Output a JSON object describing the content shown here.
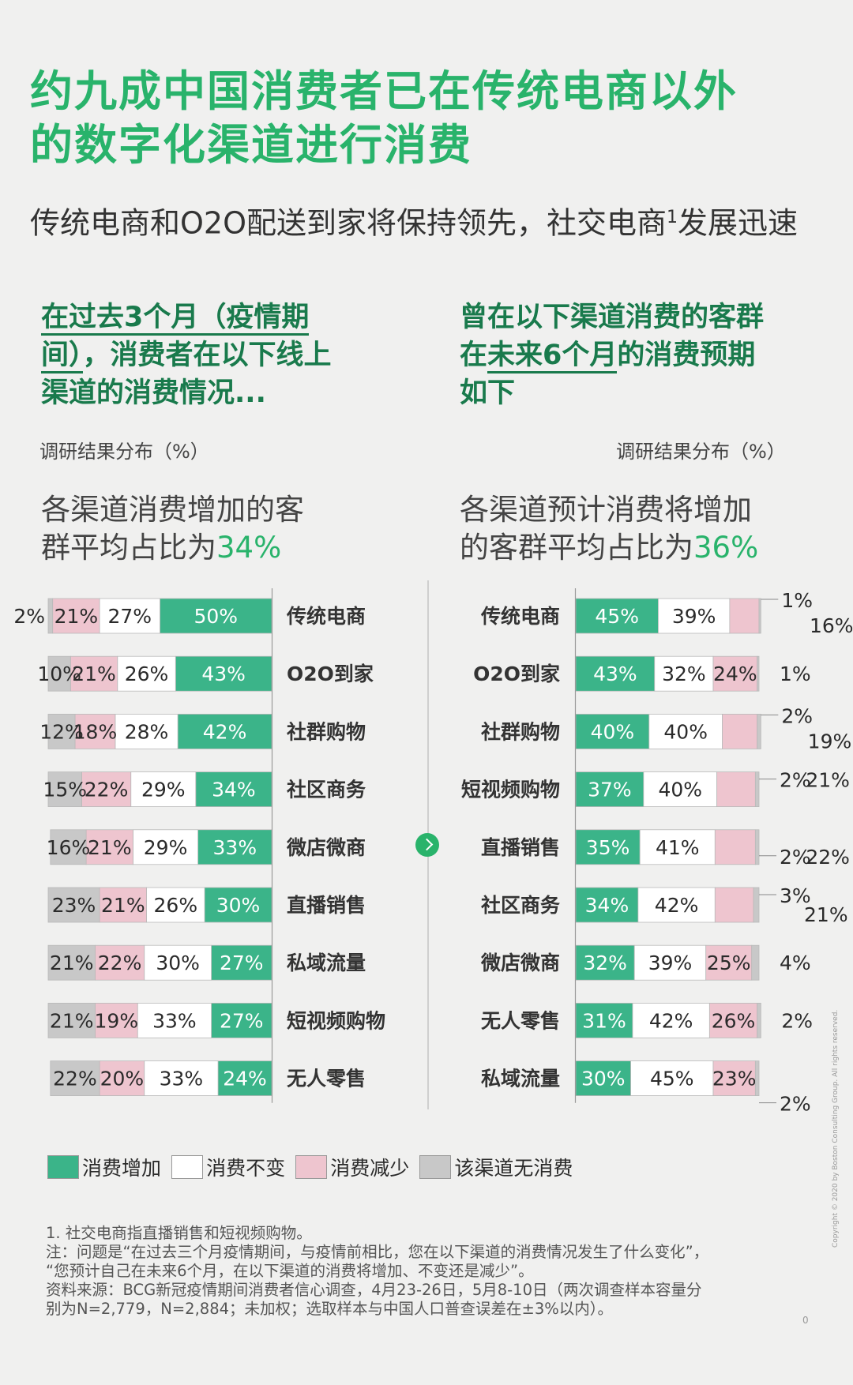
{
  "title_line1": "约九成中国消费者已在传统电商以外",
  "title_line2": "的数字化渠道进行消费",
  "subtitle_a": "传统电商和O2O配送到家将保持领先，社交电商",
  "subtitle_sup": "1",
  "subtitle_b": "发展迅速",
  "left_panel": {
    "head_a": "在过去3个月（疫情期",
    "head_b": "间）",
    "head_c": "，消费者在以下线上",
    "head_d": "渠道的消费情况...",
    "unit": "调研结果分布（%）",
    "avg_a": "各渠道消费增加的客",
    "avg_b": "群平均占比为",
    "avg_pct": "34%"
  },
  "right_panel": {
    "head_a": "曾在以下渠道消费的客群",
    "head_b": "在",
    "head_c": "未来6个月",
    "head_d": "的消费预期",
    "head_e": "如下",
    "unit": "调研结果分布（%）",
    "avg_a": "各渠道预计消费将增加",
    "avg_b": "的客群平均占比为",
    "avg_pct": "36%"
  },
  "legend": [
    {
      "label": "消费增加",
      "color": "#3bb489"
    },
    {
      "label": "消费不变",
      "color": "#ffffff"
    },
    {
      "label": "消费减少",
      "color": "#eec5cf"
    },
    {
      "label": "该渠道无消费",
      "color": "#c8c8c8"
    }
  ],
  "notes": [
    "1.  社交电商指直播销售和短视频购物。",
    "注：问题是“在过去三个月疫情期间，与疫情前相比，您在以下渠道的消费情况发生了什么变化”，",
    "“您预计自己在未来6个月，在以下渠道的消费将增加、不变还是减少”。",
    "资料来源：BCG新冠疫情期间消费者信心调查，4月23-26日，5月8-10日（两次调查样本容量分",
    "别为N=2,779，N=2,884；未加权；选取样本与中国人口普查误差在±3%以内）。"
  ],
  "copyright": "Copyright © 2020 by Boston Consulting Group. All rights reserved.",
  "page_number": "0",
  "chart_data": [
    {
      "type": "bar",
      "stacked": true,
      "orientation": "horizontal",
      "categories": [
        "传统电商",
        "O2O到家",
        "社群购物",
        "社区商务",
        "微店微商",
        "直播销售",
        "私域流量",
        "短视频购物",
        "无人零售"
      ],
      "series": [
        {
          "name": "该渠道无消费",
          "color": "#c8c8c8",
          "values": [
            2,
            10,
            12,
            15,
            16,
            23,
            21,
            21,
            22
          ]
        },
        {
          "name": "消费减少",
          "color": "#eec5cf",
          "values": [
            21,
            21,
            18,
            22,
            21,
            21,
            22,
            19,
            20
          ]
        },
        {
          "name": "消费不变",
          "color": "#ffffff",
          "values": [
            27,
            26,
            28,
            29,
            29,
            26,
            30,
            33,
            33
          ]
        },
        {
          "name": "消费增加",
          "color": "#3bb489",
          "values": [
            50,
            43,
            42,
            34,
            33,
            30,
            27,
            27,
            24
          ]
        }
      ]
    },
    {
      "type": "bar",
      "stacked": true,
      "orientation": "horizontal",
      "categories": [
        "传统电商",
        "O2O到家",
        "社群购物",
        "短视频购物",
        "直播销售",
        "社区商务",
        "微店微商",
        "无人零售",
        "私域流量"
      ],
      "series": [
        {
          "name": "消费增加",
          "color": "#3bb489",
          "values": [
            45,
            43,
            40,
            37,
            35,
            34,
            32,
            31,
            30
          ]
        },
        {
          "name": "消费不变",
          "color": "#ffffff",
          "values": [
            39,
            32,
            40,
            40,
            41,
            42,
            39,
            42,
            45
          ]
        },
        {
          "name": "消费减少",
          "color": "#eec5cf",
          "values": [
            16,
            24,
            19,
            21,
            22,
            21,
            25,
            26,
            23
          ]
        },
        {
          "name": "该渠道无消费",
          "color": "#c8c8c8",
          "values": [
            1,
            1,
            2,
            2,
            2,
            3,
            4,
            2,
            2
          ]
        }
      ]
    }
  ]
}
